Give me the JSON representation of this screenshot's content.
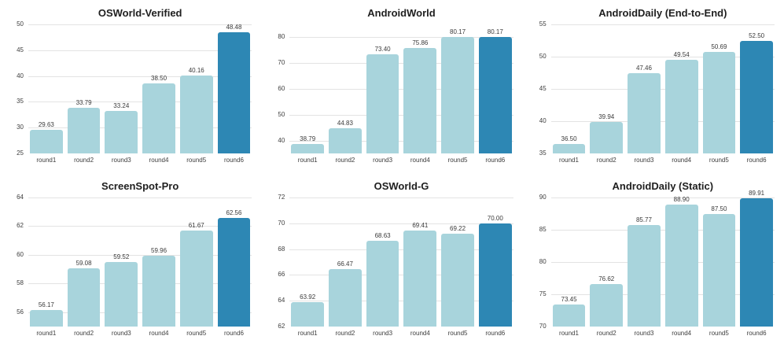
{
  "page": {
    "background": "#ffffff"
  },
  "colors": {
    "bar": "#a8d4dc",
    "bar_highlight": "#2d87b4",
    "gridline": "#e3e3e3",
    "tick_text": "#3d3d3d",
    "value_text": "#3a3a3a",
    "title_text": "#202020"
  },
  "chart_data": [
    {
      "type": "bar",
      "title": "OSWorld-Verified",
      "categories": [
        "round1",
        "round2",
        "round3",
        "round4",
        "round5",
        "round6"
      ],
      "values": [
        29.63,
        33.79,
        33.24,
        38.5,
        40.16,
        48.48
      ],
      "value_labels": [
        "29.63",
        "33.79",
        "33.24",
        "38.50",
        "40.16",
        "48.48"
      ],
      "ylim": [
        25,
        50
      ],
      "yticks": [
        25,
        30,
        35,
        40,
        45,
        50
      ],
      "highlight_index": 5,
      "grid": true,
      "legend": false,
      "xlabel": "",
      "ylabel": ""
    },
    {
      "type": "bar",
      "title": "AndroidWorld",
      "categories": [
        "round1",
        "round2",
        "round3",
        "round4",
        "round5",
        "round6"
      ],
      "values": [
        38.79,
        44.83,
        73.4,
        75.86,
        80.17,
        80.17
      ],
      "value_labels": [
        "38.79",
        "44.83",
        "73.40",
        "75.86",
        "80.17",
        "80.17"
      ],
      "ylim": [
        35,
        85
      ],
      "yticks": [
        40,
        50,
        60,
        70,
        80
      ],
      "highlight_index": 5,
      "grid": true,
      "legend": false,
      "xlabel": "",
      "ylabel": ""
    },
    {
      "type": "bar",
      "title": "AndroidDaily (End-to-End)",
      "categories": [
        "round1",
        "round2",
        "round3",
        "round4",
        "round5",
        "round6"
      ],
      "values": [
        36.5,
        39.94,
        47.46,
        49.54,
        50.69,
        52.5
      ],
      "value_labels": [
        "36.50",
        "39.94",
        "47.46",
        "49.54",
        "50.69",
        "52.50"
      ],
      "ylim": [
        35,
        55
      ],
      "yticks": [
        35,
        40,
        45,
        50,
        55
      ],
      "highlight_index": 5,
      "grid": true,
      "legend": false,
      "xlabel": "",
      "ylabel": ""
    },
    {
      "type": "bar",
      "title": "ScreenSpot-Pro",
      "categories": [
        "round1",
        "round2",
        "round3",
        "round4",
        "round5",
        "round6"
      ],
      "values": [
        56.17,
        59.08,
        59.52,
        59.96,
        61.67,
        62.56
      ],
      "value_labels": [
        "56.17",
        "59.08",
        "59.52",
        "59.96",
        "61.67",
        "62.56"
      ],
      "ylim": [
        55,
        64
      ],
      "yticks": [
        56,
        58,
        60,
        62,
        64
      ],
      "highlight_index": 5,
      "grid": true,
      "legend": false,
      "xlabel": "",
      "ylabel": ""
    },
    {
      "type": "bar",
      "title": "OSWorld-G",
      "categories": [
        "round1",
        "round2",
        "round3",
        "round4",
        "round5",
        "round6"
      ],
      "values": [
        63.92,
        66.47,
        68.63,
        69.41,
        69.22,
        70.0
      ],
      "value_labels": [
        "63.92",
        "66.47",
        "68.63",
        "69.41",
        "69.22",
        "70.00"
      ],
      "ylim": [
        62,
        72
      ],
      "yticks": [
        62,
        64,
        66,
        68,
        70,
        72
      ],
      "highlight_index": 5,
      "grid": true,
      "legend": false,
      "xlabel": "",
      "ylabel": ""
    },
    {
      "type": "bar",
      "title": "AndroidDaily (Static)",
      "categories": [
        "round1",
        "round2",
        "round3",
        "round4",
        "round5",
        "round6"
      ],
      "values": [
        73.45,
        76.62,
        85.77,
        88.9,
        87.5,
        89.91
      ],
      "value_labels": [
        "73.45",
        "76.62",
        "85.77",
        "88.90",
        "87.50",
        "89.91"
      ],
      "ylim": [
        70,
        90
      ],
      "yticks": [
        70,
        75,
        80,
        85,
        90
      ],
      "highlight_index": 5,
      "grid": true,
      "legend": false,
      "xlabel": "",
      "ylabel": ""
    }
  ]
}
